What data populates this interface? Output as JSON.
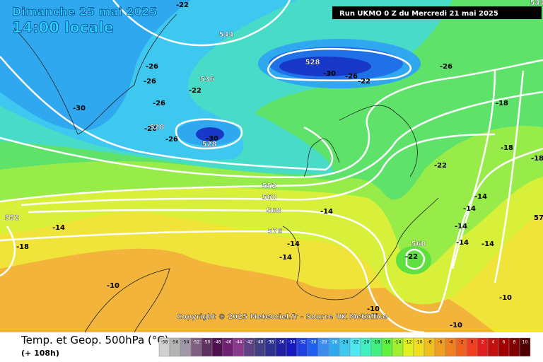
{
  "header": {
    "date": "Dimanche 25 mai 2025",
    "time": "14:00 locale",
    "run": "Run UKMO 0 Z du Mercredi 21 mai 2025"
  },
  "map": {
    "labels": [
      -22,
      544,
      544,
      -26,
      -26,
      536,
      -22,
      -26,
      -30,
      528,
      -30,
      -26,
      -22,
      -26,
      -18,
      -26,
      528,
      -26,
      -30,
      528,
      -18,
      -18,
      -22,
      552,
      560,
      568,
      -14,
      576,
      -14,
      552,
      -18,
      -14,
      560,
      -22,
      -14,
      -10,
      -14,
      -14,
      -14,
      -14,
      -14,
      -10,
      -10,
      -10,
      57
    ]
  },
  "copyright": "Copyright © 2025 Meteociel.fr - Source UK MetOffice",
  "footer": {
    "title": "Temp. et Geop. 500hPa (°C)",
    "lead": "(+ 108h)"
  },
  "legend": {
    "labels": [
      -58,
      -56,
      -54,
      -52,
      -50,
      -48,
      -46,
      -44,
      -42,
      -40,
      -38,
      -36,
      -34,
      -32,
      -30,
      -28,
      -26,
      -24,
      -22,
      -20,
      -18,
      -16,
      -14,
      -12,
      -10,
      -8,
      -6,
      -4,
      -2,
      0,
      2,
      4,
      6,
      8,
      10
    ],
    "colors": [
      "#d0d0d0",
      "#b4b4b4",
      "#a098a8",
      "#806080",
      "#603060",
      "#501050",
      "#702070",
      "#8a3a8a",
      "#604080",
      "#404080",
      "#303090",
      "#2020a0",
      "#1818c0",
      "#2040e0",
      "#2060f0",
      "#3c8cf0",
      "#30a8f0",
      "#40c8f0",
      "#50e8f0",
      "#40f0c0",
      "#40f080",
      "#60f040",
      "#a0f030",
      "#e0f020",
      "#f0e020",
      "#f0c020",
      "#f0a020",
      "#f08020",
      "#f06020",
      "#f04020",
      "#e02020",
      "#c01010",
      "#a00000",
      "#800000",
      "#500000"
    ]
  }
}
